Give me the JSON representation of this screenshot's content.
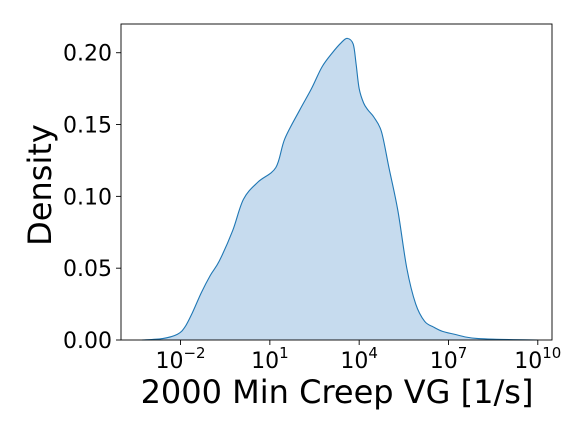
{
  "chart_data": {
    "type": "area",
    "kind": "kernel density estimate",
    "xlabel": "2000 Min Creep VG [1/s]",
    "ylabel": "Density",
    "x_scale": "log",
    "x_tick_base": "10",
    "xlim": [
      0.0001,
      30000000000
    ],
    "ylim": [
      0,
      0.22
    ],
    "x_ticks": [
      {
        "value": 0.01,
        "exp": "−2"
      },
      {
        "value": 10,
        "exp": "1"
      },
      {
        "value": 10000,
        "exp": "4"
      },
      {
        "value": 10000000,
        "exp": "7"
      },
      {
        "value": 10000000000,
        "exp": "10"
      }
    ],
    "y_ticks": [
      {
        "value": 0.0,
        "label": "0.00"
      },
      {
        "value": 0.05,
        "label": "0.05"
      },
      {
        "value": 0.1,
        "label": "0.10"
      },
      {
        "value": 0.15,
        "label": "0.15"
      },
      {
        "value": 0.2,
        "label": "0.20"
      }
    ],
    "grid": false,
    "legend": "none",
    "series": [
      {
        "x": [
          0.0005,
          0.0025,
          0.0079,
          0.014,
          0.025,
          0.05,
          0.1,
          0.2,
          0.56,
          1.3,
          4.0,
          15.8,
          31.6,
          100,
          250,
          560,
          1260,
          2500,
          4000,
          6300,
          7900,
          10000,
          14100,
          20000,
          31600,
          56200,
          100000,
          200000,
          398000,
          794000,
          1580000,
          3160000,
          6310000,
          15800000,
          39800000,
          100000000,
          398000000,
          1580000000,
          10000000000
        ],
        "y": [
          0.0,
          0.001,
          0.004,
          0.009,
          0.019,
          0.033,
          0.045,
          0.055,
          0.076,
          0.098,
          0.11,
          0.12,
          0.14,
          0.16,
          0.175,
          0.19,
          0.2,
          0.207,
          0.21,
          0.206,
          0.192,
          0.175,
          0.165,
          0.16,
          0.155,
          0.145,
          0.12,
          0.09,
          0.05,
          0.025,
          0.013,
          0.009,
          0.006,
          0.004,
          0.002,
          0.001,
          0.0005,
          0.0002,
          0.0
        ],
        "fill_color": "#c6dbee",
        "line_color": "#1f77b4"
      }
    ]
  }
}
